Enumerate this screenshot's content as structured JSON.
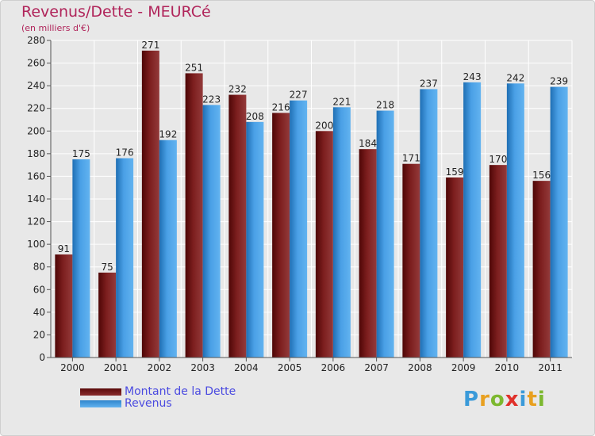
{
  "header": {
    "title": "Revenus/Dette - MEURCé",
    "subtitle": "(en milliers d'€)"
  },
  "chart_data": {
    "type": "bar",
    "categories": [
      "2000",
      "2001",
      "2002",
      "2003",
      "2004",
      "2005",
      "2006",
      "2007",
      "2008",
      "2009",
      "2010",
      "2011"
    ],
    "series": [
      {
        "name": "Montant de la Dette",
        "values": [
          91,
          75,
          271,
          251,
          232,
          216,
          200,
          184,
          171,
          159,
          170,
          156
        ],
        "color": "#7b1c1c"
      },
      {
        "name": "Revenus",
        "values": [
          175,
          176,
          192,
          223,
          208,
          227,
          221,
          218,
          237,
          243,
          242,
          239
        ],
        "color": "#55a8ea"
      }
    ],
    "yticks": [
      0,
      20,
      40,
      60,
      80,
      100,
      120,
      140,
      160,
      180,
      200,
      220,
      240,
      260,
      280
    ],
    "ylim": [
      0,
      280
    ],
    "grid": true,
    "legend": "bottom-left"
  },
  "legend": {
    "items": [
      {
        "label": "Montant de la Dette",
        "color": "#7b1c1c"
      },
      {
        "label": "Revenus",
        "color": "#55a8ea"
      }
    ]
  },
  "logo": {
    "letters": [
      "P",
      "r",
      "o",
      "x",
      "i",
      "t",
      "i"
    ],
    "colors": [
      "#3a9ad9",
      "#e8a020",
      "#7cb82f",
      "#e0302a",
      "#3a9ad9",
      "#e8a020",
      "#7cb82f"
    ]
  }
}
